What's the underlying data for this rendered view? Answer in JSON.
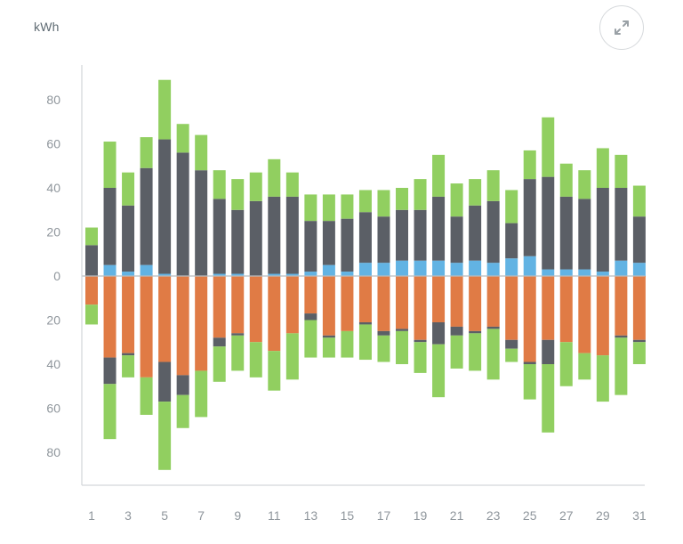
{
  "ui": {
    "expand_icon": "expand-icon",
    "colors": {
      "solar": "#91cf60",
      "net": "#5b5f66",
      "battery": "#62b3e3",
      "grid": "#e07b45",
      "axis": "#d3d6d9",
      "zero_line": "#b9bcbf",
      "tick_text": "#8f969c",
      "icon": "#9aa1a6"
    }
  },
  "chart_data": {
    "type": "bar",
    "ylabel": "kWh",
    "ylim": [
      -95,
      95
    ],
    "y_ticks": [
      -80,
      -60,
      -40,
      -20,
      0,
      20,
      40,
      60,
      80
    ],
    "y_tick_labels": [
      "80",
      "60",
      "40",
      "20",
      "0",
      "20",
      "40",
      "60",
      "80"
    ],
    "categories": [
      "1",
      "2",
      "3",
      "4",
      "5",
      "6",
      "7",
      "8",
      "9",
      "10",
      "11",
      "12",
      "13",
      "14",
      "15",
      "16",
      "17",
      "18",
      "19",
      "20",
      "21",
      "22",
      "23",
      "24",
      "25",
      "26",
      "27",
      "28",
      "29",
      "30",
      "31"
    ],
    "x_tick_labels": [
      "1",
      "3",
      "5",
      "7",
      "9",
      "11",
      "13",
      "15",
      "17",
      "19",
      "21",
      "23",
      "25",
      "27",
      "29",
      "31"
    ],
    "grid": false,
    "series": [
      {
        "color": "#62b3e3",
        "values": [
          0,
          5,
          2,
          5,
          1,
          0,
          0,
          1,
          1,
          0,
          1,
          1,
          2,
          5,
          2,
          6,
          6,
          7,
          7,
          7,
          6,
          7,
          6,
          8,
          9,
          3,
          3,
          3,
          2,
          7,
          6
        ]
      },
      {
        "color": "#5b5f66",
        "values": [
          14,
          35,
          30,
          44,
          61,
          56,
          48,
          34,
          29,
          34,
          35,
          35,
          23,
          20,
          24,
          23,
          21,
          23,
          23,
          29,
          21,
          25,
          28,
          16,
          35,
          42,
          33,
          32,
          38,
          33,
          21
        ]
      },
      {
        "color": "#91cf60",
        "values": [
          8,
          21,
          15,
          14,
          27,
          13,
          16,
          13,
          14,
          13,
          17,
          11,
          12,
          12,
          11,
          10,
          12,
          10,
          14,
          19,
          15,
          12,
          14,
          15,
          13,
          27,
          15,
          13,
          18,
          15,
          14
        ]
      },
      {
        "color": "#e07b45",
        "values": [
          -13,
          -37,
          -35,
          -46,
          -39,
          -45,
          -43,
          -28,
          -26,
          -30,
          -34,
          -26,
          -17,
          -27,
          -25,
          -21,
          -25,
          -24,
          -29,
          -21,
          -23,
          -25,
          -23,
          -29,
          -39,
          -29,
          -30,
          -35,
          -36,
          -27,
          -29
        ]
      },
      {
        "color": "#5b5f66",
        "values": [
          0,
          -12,
          -1,
          0,
          -18,
          -9,
          0,
          -4,
          -1,
          0,
          0,
          0,
          -3,
          -1,
          0,
          -1,
          -2,
          -1,
          -1,
          -10,
          -4,
          -1,
          -1,
          -4,
          -1,
          -11,
          0,
          0,
          0,
          -1,
          -1
        ]
      },
      {
        "color": "#91cf60",
        "values": [
          -9,
          -25,
          -10,
          -17,
          -31,
          -15,
          -21,
          -16,
          -16,
          -16,
          -18,
          -21,
          -17,
          -9,
          -12,
          -16,
          -12,
          -15,
          -14,
          -24,
          -15,
          -17,
          -23,
          -6,
          -16,
          -31,
          -20,
          -12,
          -21,
          -26,
          -10
        ]
      }
    ]
  }
}
